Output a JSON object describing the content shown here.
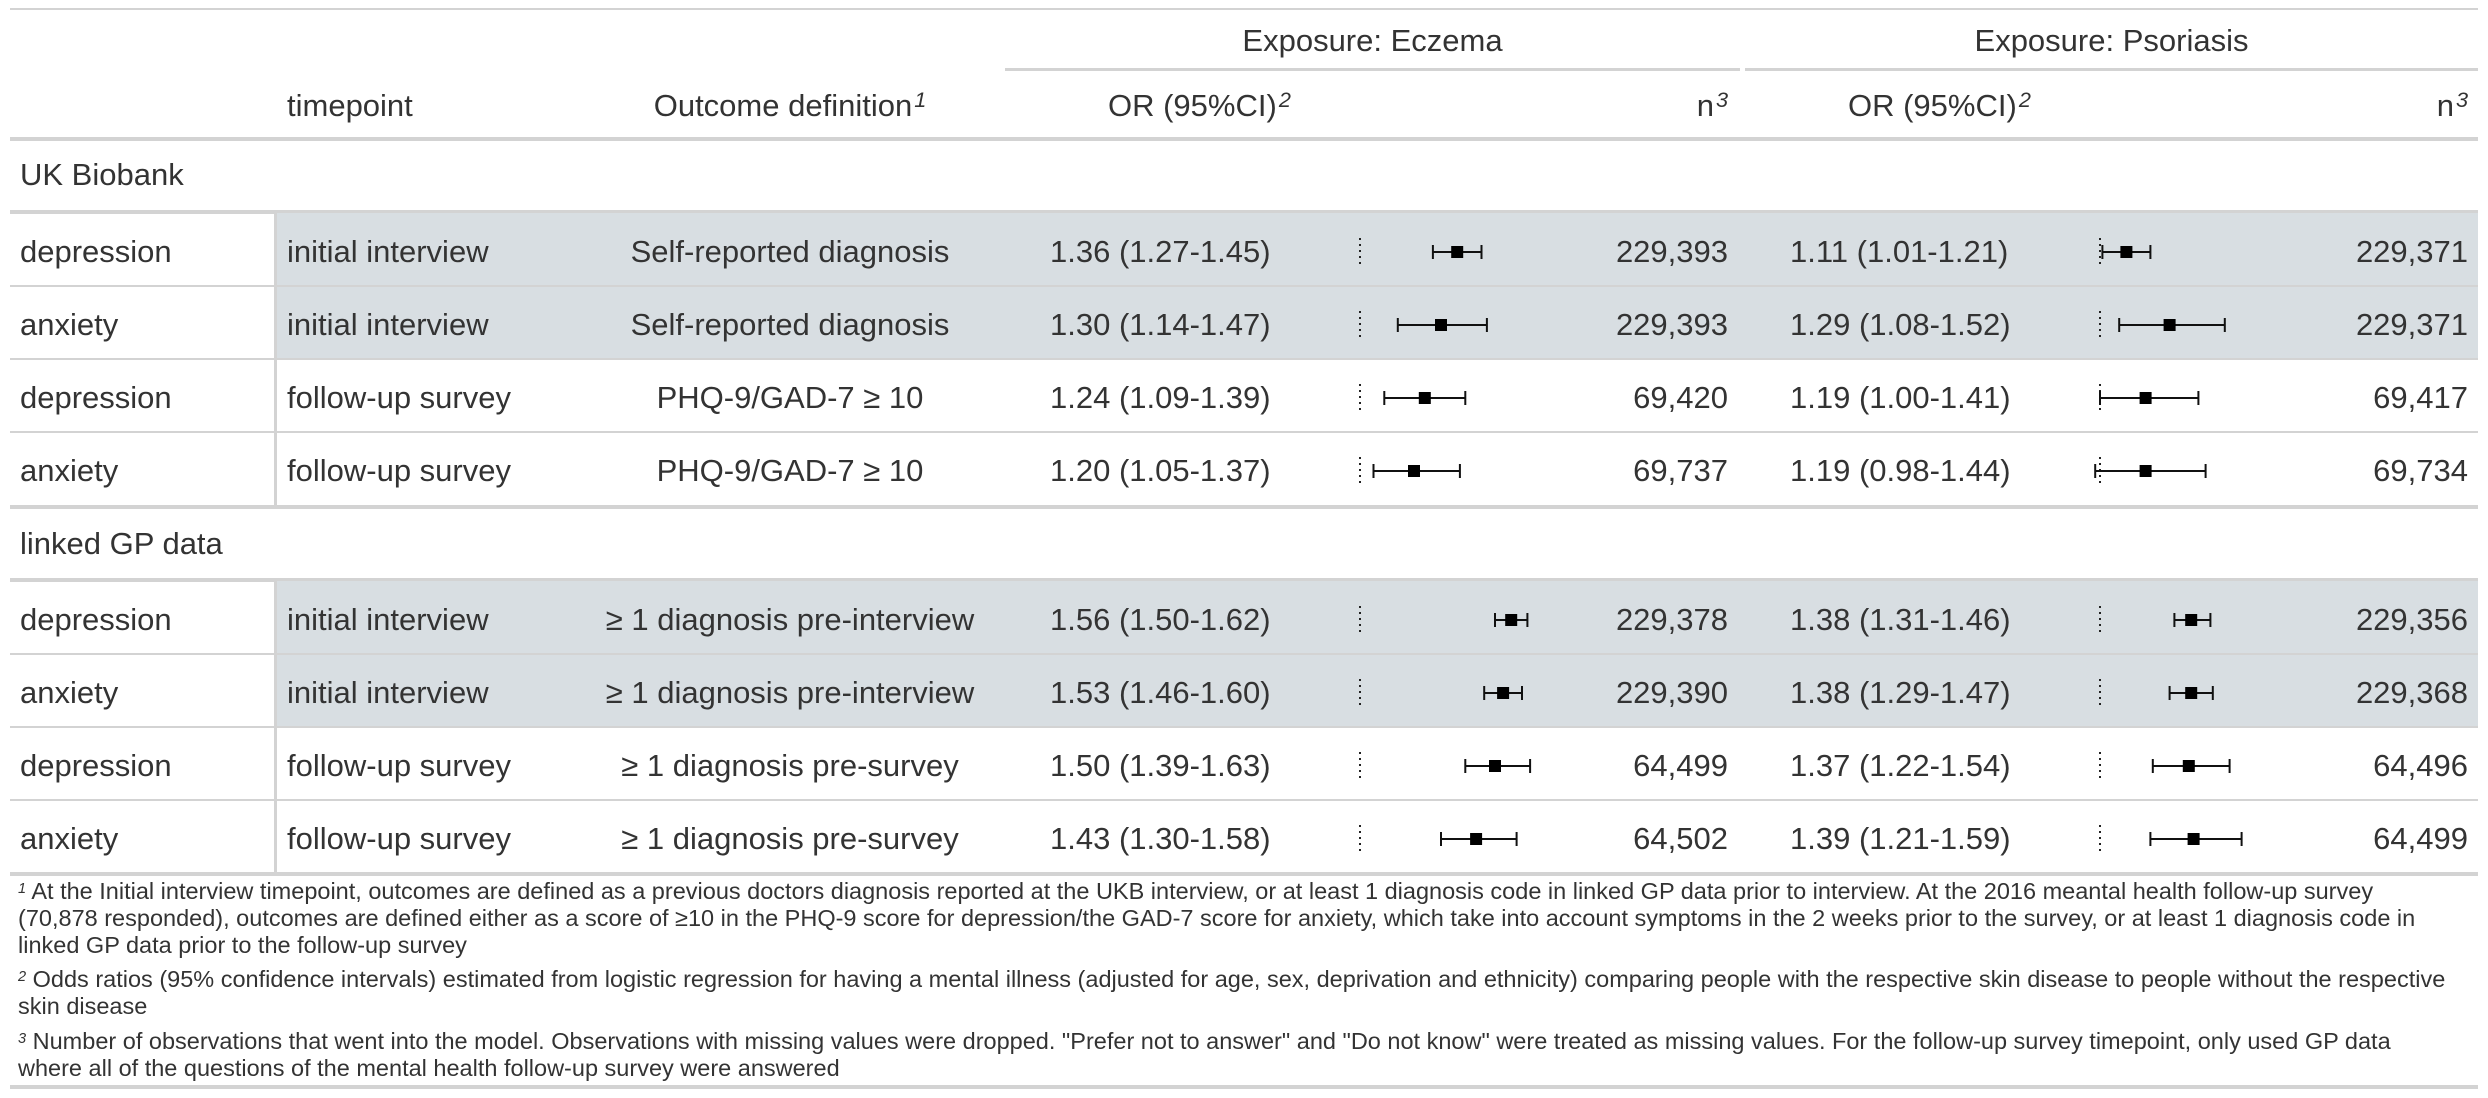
{
  "header": {
    "spanners": [
      "Exposure: Eczema",
      "Exposure: Psoriasis"
    ],
    "col_timepoint": "timepoint",
    "col_outcome": "Outcome definition",
    "col_outcome_sup": "1",
    "col_or": "OR (95%CI)",
    "col_or_sup": "2",
    "col_n": "n",
    "col_n_sup": "3"
  },
  "groups": [
    {
      "label": "UK Biobank",
      "rows": [
        {
          "outcome": "depression",
          "timepoint": "initial interview",
          "definition": "Self-reported diagnosis",
          "ecz_or": "1.36 (1.27-1.45)",
          "ecz_n": "229,393",
          "pso_or": "1.11 (1.01-1.21)",
          "pso_n": "229,371",
          "shaded": true
        },
        {
          "outcome": "anxiety",
          "timepoint": "initial interview",
          "definition": "Self-reported diagnosis",
          "ecz_or": "1.30 (1.14-1.47)",
          "ecz_n": "229,393",
          "pso_or": "1.29 (1.08-1.52)",
          "pso_n": "229,371",
          "shaded": true
        },
        {
          "outcome": "depression",
          "timepoint": "follow-up survey",
          "definition": "PHQ-9/GAD-7 ≥ 10",
          "ecz_or": "1.24 (1.09-1.39)",
          "ecz_n": "69,420",
          "pso_or": "1.19 (1.00-1.41)",
          "pso_n": "69,417",
          "shaded": false
        },
        {
          "outcome": "anxiety",
          "timepoint": "follow-up survey",
          "definition": "PHQ-9/GAD-7 ≥ 10",
          "ecz_or": "1.20 (1.05-1.37)",
          "ecz_n": "69,737",
          "pso_or": "1.19 (0.98-1.44)",
          "pso_n": "69,734",
          "shaded": false
        }
      ]
    },
    {
      "label": "linked GP data",
      "rows": [
        {
          "outcome": "depression",
          "timepoint": "initial interview",
          "definition": "≥ 1 diagnosis pre-interview",
          "ecz_or": "1.56 (1.50-1.62)",
          "ecz_n": "229,378",
          "pso_or": "1.38 (1.31-1.46)",
          "pso_n": "229,356",
          "shaded": true
        },
        {
          "outcome": "anxiety",
          "timepoint": "initial interview",
          "definition": "≥ 1 diagnosis pre-interview",
          "ecz_or": "1.53 (1.46-1.60)",
          "ecz_n": "229,390",
          "pso_or": "1.38 (1.29-1.47)",
          "pso_n": "229,368",
          "shaded": true
        },
        {
          "outcome": "depression",
          "timepoint": "follow-up survey",
          "definition": "≥ 1 diagnosis pre-survey",
          "ecz_or": "1.50 (1.39-1.63)",
          "ecz_n": "64,499",
          "pso_or": "1.37 (1.22-1.54)",
          "pso_n": "64,496",
          "shaded": false
        },
        {
          "outcome": "anxiety",
          "timepoint": "follow-up survey",
          "definition": "≥ 1 diagnosis pre-survey",
          "ecz_or": "1.43 (1.30-1.58)",
          "ecz_n": "64,502",
          "pso_or": "1.39 (1.21-1.59)",
          "pso_n": "64,499",
          "shaded": false
        }
      ]
    }
  ],
  "forest": {
    "eczema": [
      {
        "or": 1.36,
        "lo": 1.27,
        "hi": 1.45
      },
      {
        "or": 1.3,
        "lo": 1.14,
        "hi": 1.47
      },
      {
        "or": 1.24,
        "lo": 1.09,
        "hi": 1.39
      },
      {
        "or": 1.2,
        "lo": 1.05,
        "hi": 1.37
      },
      {
        "or": 1.56,
        "lo": 1.5,
        "hi": 1.62
      },
      {
        "or": 1.53,
        "lo": 1.46,
        "hi": 1.6
      },
      {
        "or": 1.5,
        "lo": 1.39,
        "hi": 1.63
      },
      {
        "or": 1.43,
        "lo": 1.3,
        "hi": 1.58
      }
    ],
    "psoriasis": [
      {
        "or": 1.11,
        "lo": 1.01,
        "hi": 1.21
      },
      {
        "or": 1.29,
        "lo": 1.08,
        "hi": 1.52
      },
      {
        "or": 1.19,
        "lo": 1.0,
        "hi": 1.41
      },
      {
        "or": 1.19,
        "lo": 0.98,
        "hi": 1.44
      },
      {
        "or": 1.38,
        "lo": 1.31,
        "hi": 1.46
      },
      {
        "or": 1.38,
        "lo": 1.29,
        "hi": 1.47
      },
      {
        "or": 1.37,
        "lo": 1.22,
        "hi": 1.54
      },
      {
        "or": 1.39,
        "lo": 1.21,
        "hi": 1.59
      }
    ],
    "reference_line": 1
  },
  "footnotes": [
    {
      "mark": "1",
      "text": "At the Initial interview timepoint, outcomes are defined as a previous doctors diagnosis reported at the UKB interview, or at least 1 diagnosis code in linked GP data prior to interview. At the 2016 meantal health follow-up survey (70,878 responded), outcomes are defined either as a score of ≥10 in the PHQ-9 score for depression/the GAD-7 score for anxiety, which take into account symptoms in the 2 weeks prior to the survey, or at least 1 diagnosis code in linked GP data prior to the follow-up survey"
    },
    {
      "mark": "2",
      "text": "Odds ratios (95% confidence intervals) estimated from logistic regression for having a mental illness (adjusted for age, sex, deprivation and ethnicity) comparing people with the respective skin disease to people without the respective skin disease"
    },
    {
      "mark": "3",
      "text": "Number of observations that went into the model. Observations with missing values were dropped. \"Prefer not to answer\" and \"Do not know\" were treated as missing values. For the follow-up survey timepoint, only used GP data where all of the questions of the mental health follow-up survey were answered"
    }
  ]
}
